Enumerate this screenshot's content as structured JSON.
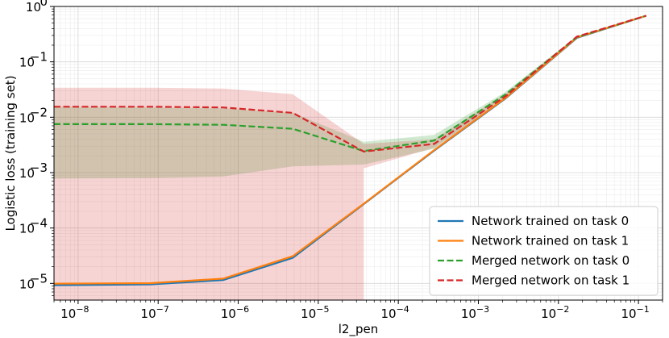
{
  "chart_data": {
    "type": "line",
    "xlabel": "l2_pen",
    "ylabel": "Logistic loss (training set)",
    "xscale": "log",
    "yscale": "log",
    "xlim": [
      5e-09,
      0.2
    ],
    "ylim": [
      5e-06,
      1
    ],
    "grid": true,
    "legend_position": "lower-right",
    "x": [
      5e-09,
      8e-08,
      6.5e-07,
      4.8e-06,
      3.7e-05,
      0.00028,
      0.0022,
      0.017,
      0.125
    ],
    "xticks": [
      {
        "value": 1e-08,
        "base": "10",
        "exp": "−8"
      },
      {
        "value": 1e-07,
        "base": "10",
        "exp": "−7"
      },
      {
        "value": 1e-06,
        "base": "10",
        "exp": "−6"
      },
      {
        "value": 1e-05,
        "base": "10",
        "exp": "−5"
      },
      {
        "value": 0.0001,
        "base": "10",
        "exp": "−4"
      },
      {
        "value": 0.001,
        "base": "10",
        "exp": "−3"
      },
      {
        "value": 0.01,
        "base": "10",
        "exp": "−2"
      },
      {
        "value": 0.1,
        "base": "10",
        "exp": "−1"
      }
    ],
    "yticks": [
      {
        "value": 1e-05,
        "base": "10",
        "exp": "−5"
      },
      {
        "value": 0.0001,
        "base": "10",
        "exp": "−4"
      },
      {
        "value": 0.001,
        "base": "10",
        "exp": "−3"
      },
      {
        "value": 0.01,
        "base": "10",
        "exp": "−2"
      },
      {
        "value": 0.1,
        "base": "10",
        "exp": "−1"
      },
      {
        "value": 1,
        "base": "10",
        "exp": "0"
      }
    ],
    "series": [
      {
        "name": "Network trained on task 0",
        "color": "#1f77b4",
        "style": "solid",
        "values": [
          9.3e-06,
          9.6e-06,
          1.15e-05,
          2.9e-05,
          0.00027,
          0.0025,
          0.022,
          0.27,
          0.68
        ]
      },
      {
        "name": "Network trained on task 1",
        "color": "#ff7f0e",
        "style": "solid",
        "values": [
          9.9e-06,
          1.01e-05,
          1.22e-05,
          3.1e-05,
          0.000275,
          0.00255,
          0.0225,
          0.275,
          0.68
        ]
      },
      {
        "name": "Merged network on task 0",
        "color": "#2ca02c",
        "style": "dashed",
        "values": [
          0.0075,
          0.0075,
          0.0073,
          0.0062,
          0.00245,
          0.0038,
          0.026,
          0.28,
          0.68
        ],
        "band_lower": [
          0.00078,
          0.0008,
          0.00085,
          0.0013,
          0.0014,
          0.0027,
          0.022,
          0.27,
          0.67
        ],
        "band_upper": [
          0.0155,
          0.015,
          0.0145,
          0.012,
          0.0036,
          0.0048,
          0.029,
          0.29,
          0.69
        ]
      },
      {
        "name": "Merged network on task 1",
        "color": "#d62728",
        "style": "dashed",
        "values": [
          0.0155,
          0.0155,
          0.015,
          0.012,
          0.0024,
          0.0033,
          0.024,
          0.285,
          0.68
        ],
        "band_lower": [
          5e-06,
          5e-06,
          5e-06,
          5e-06,
          5e-06,
          0.0028,
          0.021,
          0.28,
          0.67
        ],
        "band_upper": [
          0.034,
          0.034,
          0.033,
          0.026,
          0.0033,
          0.004,
          0.027,
          0.29,
          0.69
        ],
        "band_lower_cut_x": 3.7e-05
      }
    ]
  }
}
